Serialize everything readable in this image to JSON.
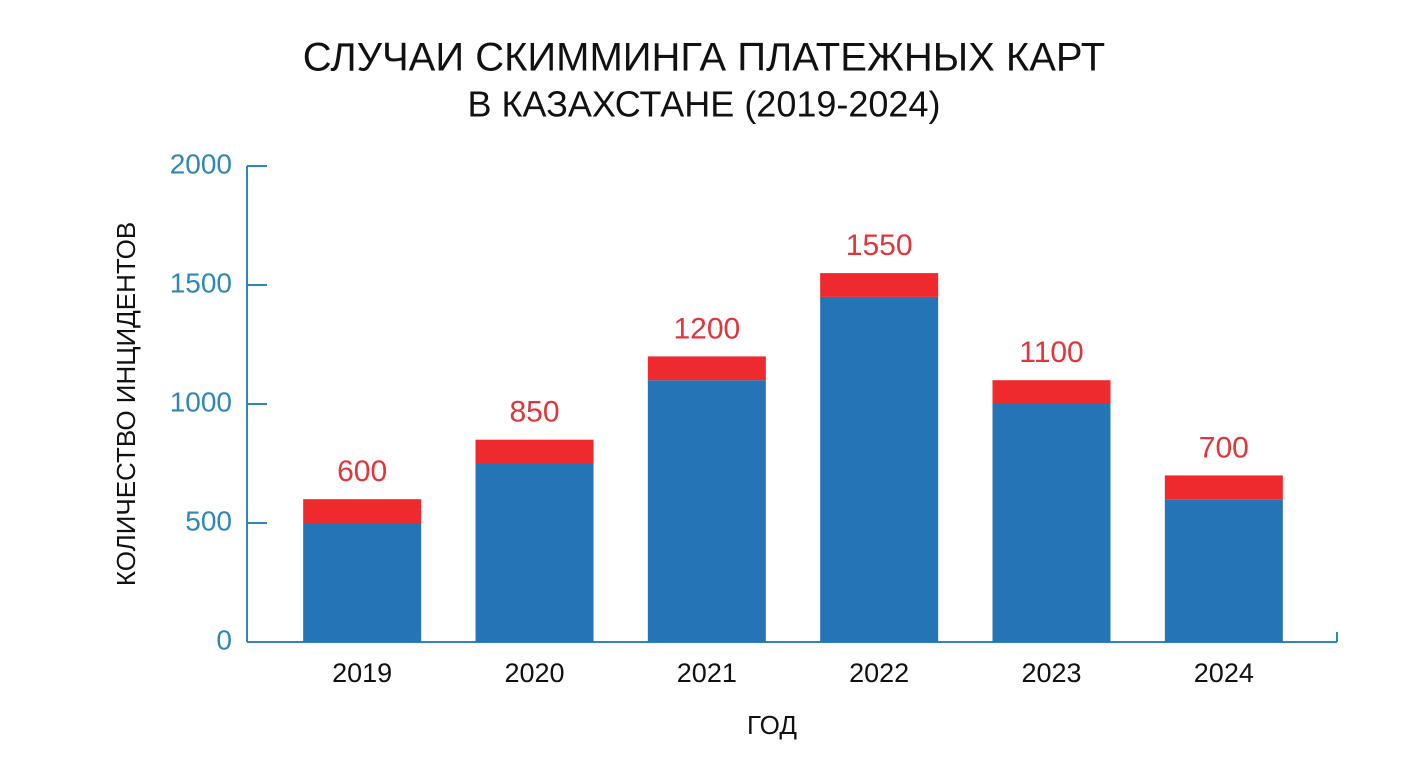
{
  "chart_data": {
    "type": "stacked_bar",
    "title": "СЛУЧАИ СКИММИНГА ПЛАТЕЖНЫХ КАРТ",
    "subtitle": "В КАЗАХСТАНЕ (2019-2024)",
    "x_label": "ГОД",
    "y_label": "КОЛИЧЕСТВО ИНЦИДЕНТОВ",
    "categories": [
      "2019",
      "2020",
      "2021",
      "2022",
      "2023",
      "2024"
    ],
    "series": [
      {
        "color": "#2574b5",
        "values": [
          500,
          750,
          1100,
          1450,
          1000,
          600
        ]
      },
      {
        "color": "#ee2a2e",
        "values": [
          100,
          100,
          100,
          100,
          100,
          100
        ]
      }
    ],
    "totals": [
      600,
      850,
      1200,
      1550,
      1100,
      700
    ],
    "total_label_color": "#e0353a",
    "axis_color": "#2f86b8",
    "ylim": [
      0,
      2000
    ],
    "yticks": [
      0,
      500,
      1000,
      1500,
      2000
    ],
    "grid": false
  }
}
